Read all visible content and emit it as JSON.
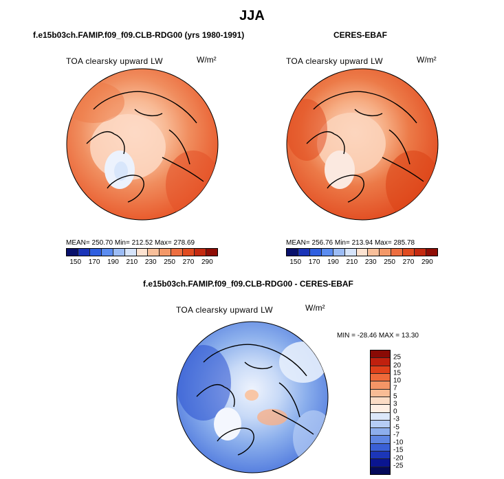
{
  "title": "JJA",
  "panels": [
    {
      "heading": "f.e15b03ch.FAMIP.f09_f09.CLB-RDG00 (yrs 1980-1991)",
      "field": "TOA clearsky upward LW",
      "units": "W/m²",
      "stats": "MEAN= 250.70   Min= 212.52   Max= 278.69"
    },
    {
      "heading": "CERES-EBAF",
      "field": "TOA clearsky upward LW",
      "units": "W/m²",
      "stats": "MEAN= 256.76   Min= 213.94   Max= 285.78"
    },
    {
      "heading": "f.e15b03ch.FAMIP.f09_f09.CLB-RDG00 - CERES-EBAF",
      "field": "TOA clearsky upward LW",
      "units": "W/m²",
      "stats": "MIN = -28.46  MAX = 13.30"
    }
  ],
  "abs_colorbar": {
    "ticks": [
      "150",
      "170",
      "190",
      "210",
      "230",
      "250",
      "270",
      "290"
    ],
    "colors": [
      "#08106b",
      "#1a34b8",
      "#2f5fe0",
      "#5b8cf0",
      "#9cbcf5",
      "#d6e4fb",
      "#fde3d1",
      "#f8bf9a",
      "#f39868",
      "#ed6e40",
      "#e04b20",
      "#c42a10",
      "#8f0d05"
    ]
  },
  "diff_colorbar": {
    "ticks": [
      "25",
      "20",
      "15",
      "10",
      "7",
      "5",
      "3",
      "0",
      "-3",
      "-5",
      "-7",
      "-10",
      "-15",
      "-20",
      "-25"
    ],
    "colors": [
      "#8a0a05",
      "#c0200e",
      "#e0401a",
      "#ef6a3a",
      "#f49566",
      "#f8bc95",
      "#fcdcc5",
      "#ffefe4",
      "#dce8fa",
      "#b6cdf5",
      "#8daeed",
      "#5f86e3",
      "#3a60d6",
      "#1c36b8",
      "#0a1590",
      "#040a5a"
    ]
  }
}
